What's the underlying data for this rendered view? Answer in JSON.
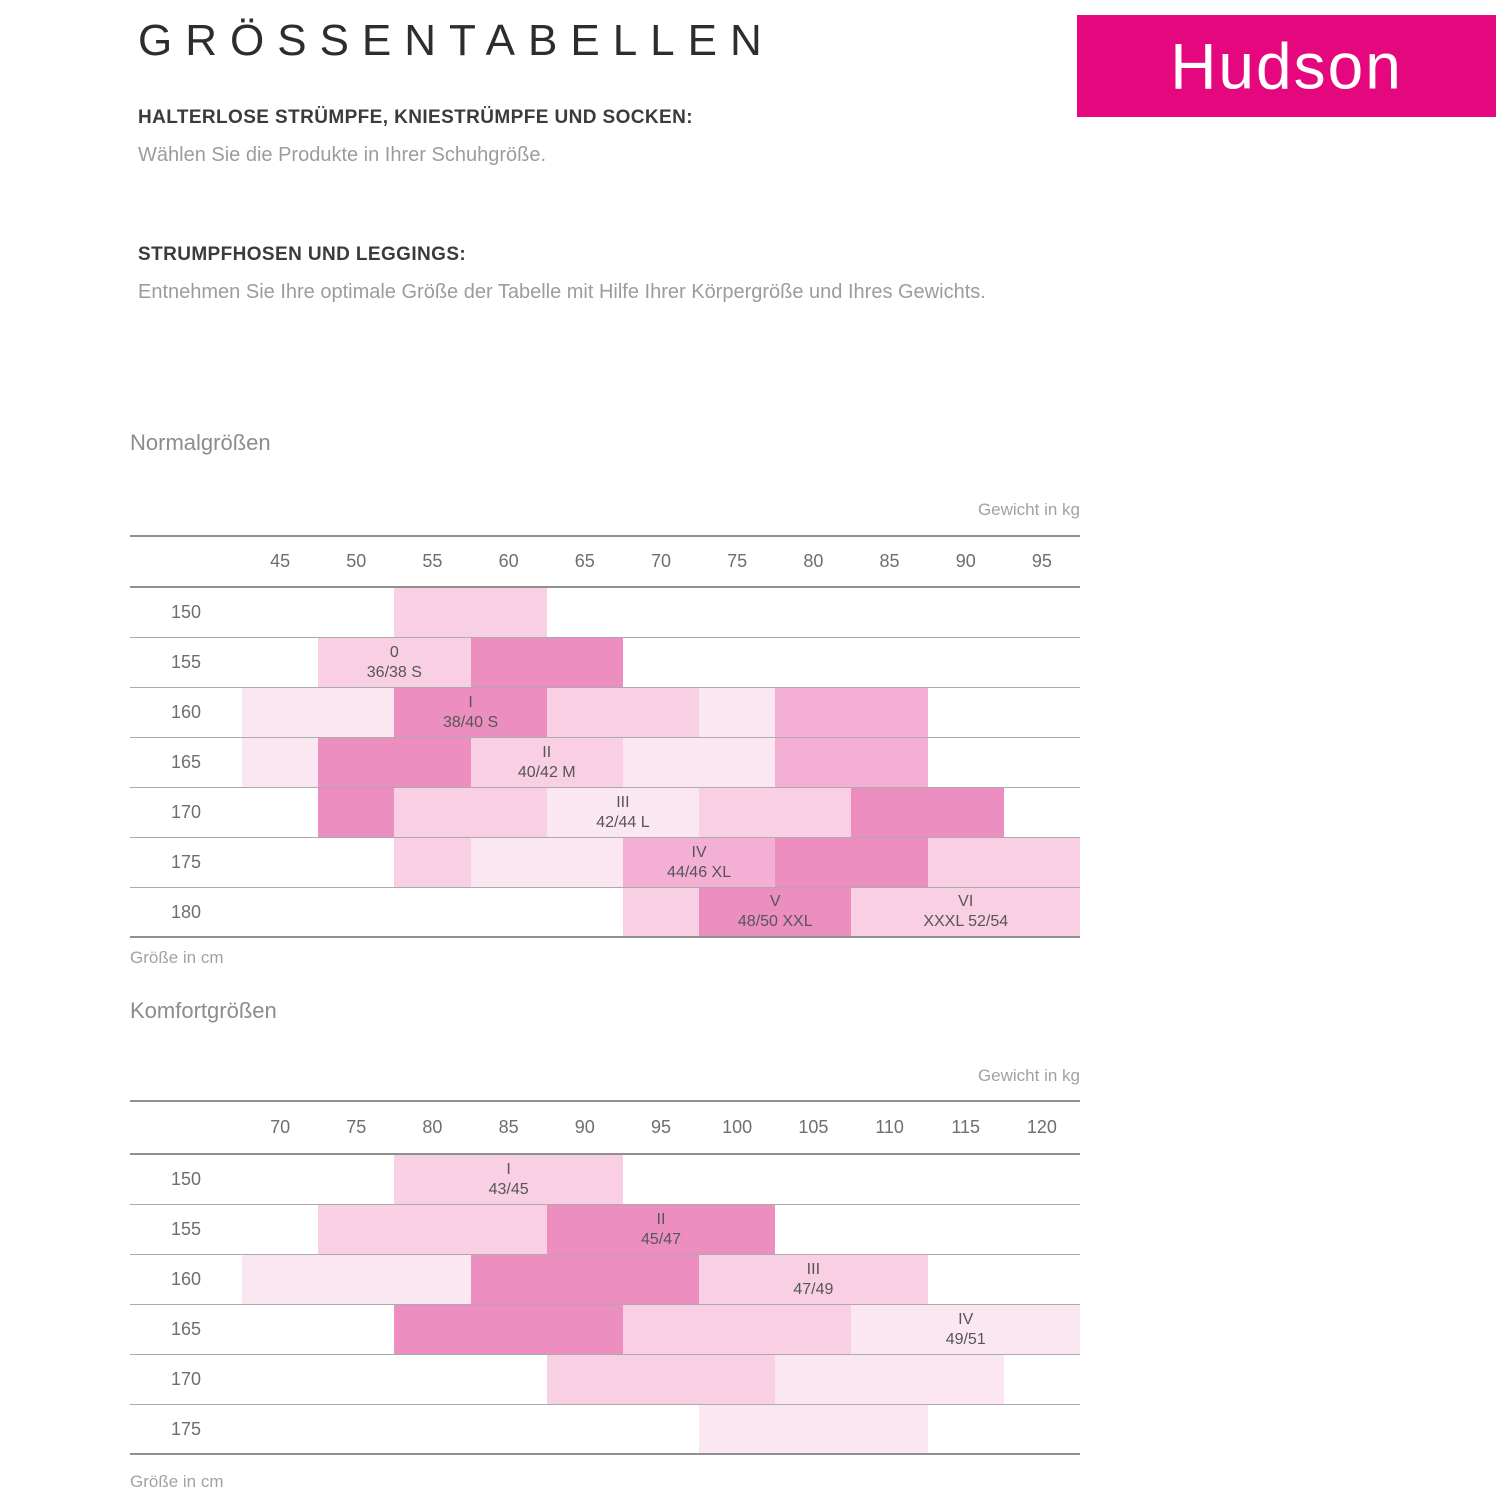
{
  "page": {
    "title": "GRÖSSENTABELLEN"
  },
  "logo": {
    "text": "Hudson",
    "background": "#E5077E"
  },
  "sections": [
    {
      "heading": "HALTERLOSE STRÜMPFE, KNIESTRÜMPFE UND SOCKEN:",
      "body": "Wählen Sie die Produkte in Ihrer Schuhgröße."
    },
    {
      "heading": "STRUMPFHOSEN UND LEGGINGS:",
      "body": "Entnehmen Sie Ihre optimale Größe der Tabelle mit Hilfe Ihrer Körpergröße und Ihres Gewichts."
    }
  ],
  "colors": {
    "logo_magenta": "#E5077E",
    "grid_line": "#8F8F8F",
    "shades": {
      "L1": "#FBE7F1",
      "L2": "#F8CFE3",
      "M": "#F4AFD4",
      "D": "#EC8FC0"
    }
  },
  "chart_data": [
    {
      "type": "heatmap",
      "title": "Normalgrößen",
      "xlabel": "Gewicht in kg",
      "ylabel": "Größe in cm",
      "x_ticks": [
        "45",
        "50",
        "55",
        "60",
        "65",
        "70",
        "75",
        "80",
        "85",
        "90",
        "95"
      ],
      "y_ticks": [
        "150",
        "155",
        "160",
        "165",
        "170",
        "175",
        "180"
      ],
      "grid": true,
      "legend_position": "none",
      "shade_legend": "L1=lightest pink, L2=light pink, M=medium pink, D=dark pink",
      "rows": [
        {
          "height": "150",
          "blocks": [
            {
              "start": 2,
              "span": 2,
              "shade": "L2",
              "kg": "55-60"
            }
          ]
        },
        {
          "height": "155",
          "blocks": [
            {
              "start": 1,
              "span": 2,
              "shade": "L2",
              "kg": "50-55",
              "line1": "0",
              "line2": "36/38 S"
            },
            {
              "start": 3,
              "span": 2,
              "shade": "D",
              "kg": "60-65"
            }
          ]
        },
        {
          "height": "160",
          "blocks": [
            {
              "start": 0,
              "span": 2,
              "shade": "L1",
              "kg": "45-50"
            },
            {
              "start": 2,
              "span": 2,
              "shade": "D",
              "kg": "55-60",
              "line1": "I",
              "line2": "38/40 S"
            },
            {
              "start": 4,
              "span": 2,
              "shade": "L2",
              "kg": "65-70"
            },
            {
              "start": 6,
              "span": 1,
              "shade": "L1",
              "kg": "75"
            },
            {
              "start": 7,
              "span": 2,
              "shade": "M",
              "kg": "80-85"
            }
          ]
        },
        {
          "height": "165",
          "blocks": [
            {
              "start": 0,
              "span": 1,
              "shade": "L1",
              "kg": "45"
            },
            {
              "start": 1,
              "span": 2,
              "shade": "D",
              "kg": "50-55"
            },
            {
              "start": 3,
              "span": 2,
              "shade": "L2",
              "kg": "60-65",
              "line1": "II",
              "line2": "40/42 M"
            },
            {
              "start": 5,
              "span": 2,
              "shade": "L1",
              "kg": "70-75"
            },
            {
              "start": 7,
              "span": 2,
              "shade": "M",
              "kg": "80-85"
            }
          ]
        },
        {
          "height": "170",
          "blocks": [
            {
              "start": 1,
              "span": 1,
              "shade": "D",
              "kg": "50"
            },
            {
              "start": 2,
              "span": 2,
              "shade": "L2",
              "kg": "55-60"
            },
            {
              "start": 4,
              "span": 2,
              "shade": "L1",
              "kg": "65-70",
              "line1": "III",
              "line2": "42/44 L"
            },
            {
              "start": 6,
              "span": 2,
              "shade": "L2",
              "kg": "75-80"
            },
            {
              "start": 8,
              "span": 2,
              "shade": "D",
              "kg": "85-90"
            }
          ]
        },
        {
          "height": "175",
          "blocks": [
            {
              "start": 2,
              "span": 1,
              "shade": "L2",
              "kg": "55"
            },
            {
              "start": 3,
              "span": 2,
              "shade": "L1",
              "kg": "60-65"
            },
            {
              "start": 5,
              "span": 2,
              "shade": "M",
              "kg": "70-75",
              "line1": "IV",
              "line2": "44/46 XL"
            },
            {
              "start": 7,
              "span": 2,
              "shade": "D",
              "kg": "80-85"
            },
            {
              "start": 9,
              "span": 2,
              "shade": "L2",
              "kg": "90-95"
            }
          ]
        },
        {
          "height": "180",
          "blocks": [
            {
              "start": 5,
              "span": 1,
              "shade": "L2",
              "kg": "70"
            },
            {
              "start": 6,
              "span": 2,
              "shade": "D",
              "kg": "75-80",
              "line1": "V",
              "line2": "48/50 XXL"
            },
            {
              "start": 8,
              "span": 3,
              "shade": "L2",
              "kg": "85-95",
              "line1": "VI",
              "line2": "XXXL 52/54"
            }
          ]
        }
      ]
    },
    {
      "type": "heatmap",
      "title": "Komfortgrößen",
      "xlabel": "Gewicht in kg",
      "ylabel": "Größe in cm",
      "x_ticks": [
        "70",
        "75",
        "80",
        "85",
        "90",
        "95",
        "100",
        "105",
        "110",
        "115",
        "120"
      ],
      "y_ticks": [
        "150",
        "155",
        "160",
        "165",
        "170",
        "175"
      ],
      "grid": true,
      "legend_position": "none",
      "shade_legend": "L1=lightest pink, L2=light pink, D=dark pink",
      "rows": [
        {
          "height": "150",
          "blocks": [
            {
              "start": 2,
              "span": 3,
              "shade": "L2",
              "kg": "80-90",
              "line1": "I",
              "line2": "43/45"
            }
          ]
        },
        {
          "height": "155",
          "blocks": [
            {
              "start": 1,
              "span": 3,
              "shade": "L2",
              "kg": "75-85"
            },
            {
              "start": 4,
              "span": 3,
              "shade": "D",
              "kg": "90-100",
              "line1": "II",
              "line2": "45/47"
            }
          ]
        },
        {
          "height": "160",
          "blocks": [
            {
              "start": 0,
              "span": 3,
              "shade": "L1",
              "kg": "70-80"
            },
            {
              "start": 3,
              "span": 3,
              "shade": "D",
              "kg": "85-95"
            },
            {
              "start": 6,
              "span": 3,
              "shade": "L2",
              "kg": "100-110",
              "line1": "III",
              "line2": "47/49"
            }
          ]
        },
        {
          "height": "165",
          "blocks": [
            {
              "start": 2,
              "span": 3,
              "shade": "D",
              "kg": "80-90"
            },
            {
              "start": 5,
              "span": 3,
              "shade": "L2",
              "kg": "95-105"
            },
            {
              "start": 8,
              "span": 3,
              "shade": "L1",
              "kg": "110-120",
              "line1": "IV",
              "line2": "49/51"
            }
          ]
        },
        {
          "height": "170",
          "blocks": [
            {
              "start": 4,
              "span": 3,
              "shade": "L2",
              "kg": "90-100"
            },
            {
              "start": 7,
              "span": 3,
              "shade": "L1",
              "kg": "105-115"
            }
          ]
        },
        {
          "height": "175",
          "blocks": [
            {
              "start": 6,
              "span": 3,
              "shade": "L1",
              "kg": "100-110"
            }
          ]
        }
      ]
    }
  ]
}
